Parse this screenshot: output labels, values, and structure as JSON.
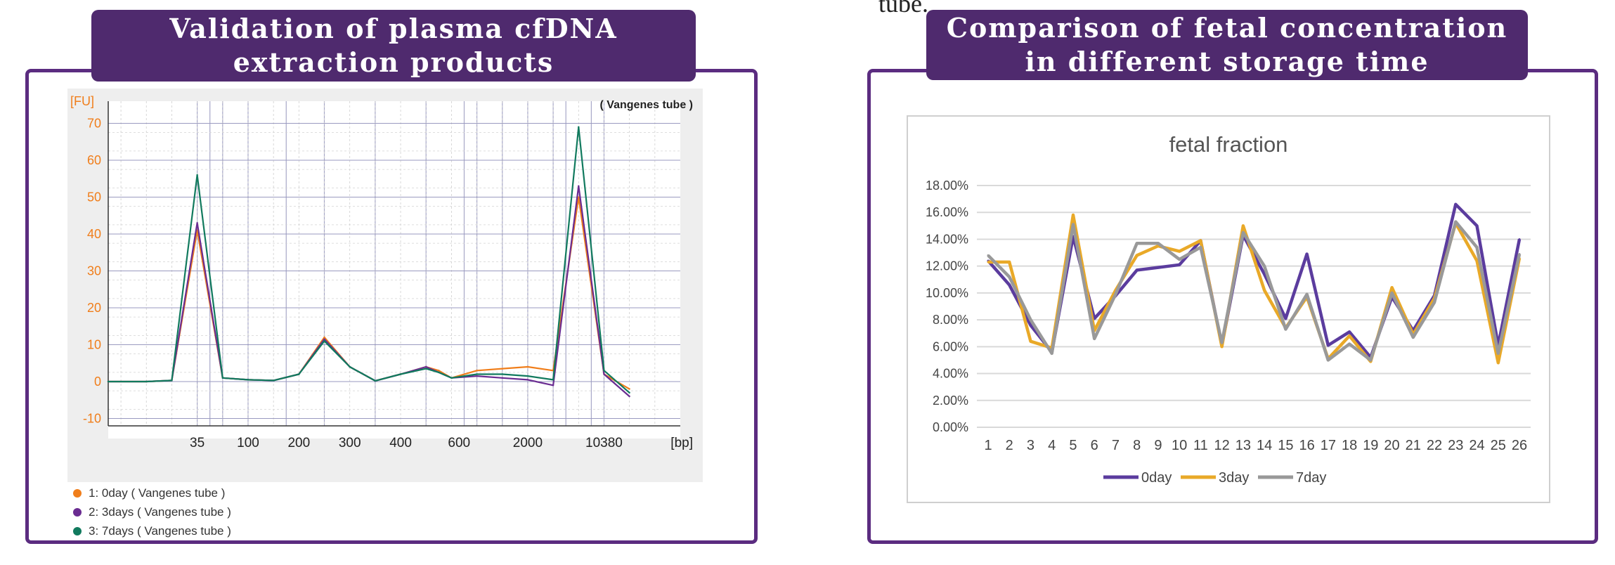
{
  "stray_text": "tube.",
  "left_panel": {
    "title_line1": "Validation of plasma cfDNA",
    "title_line2": "extraction products",
    "legend": [
      {
        "label": "1: 0day ( Vangenes tube )",
        "color": "#f07e1b"
      },
      {
        "label": "2: 3days ( Vangenes tube )",
        "color": "#6a2c91"
      },
      {
        "label": "3: 7days ( Vangenes tube )",
        "color": "#117a5e"
      }
    ]
  },
  "right_panel": {
    "title_line1": "Comparison of fetal concentration",
    "title_line2": "in different storage time"
  },
  "chart_data": [
    {
      "type": "line",
      "title": "",
      "annotation": "( Vangenes tube )",
      "ylabel": "[FU]",
      "xlabel": "[bp]",
      "ylim": [
        -12,
        76
      ],
      "yticks": [
        -10,
        0,
        10,
        20,
        30,
        40,
        50,
        60,
        70
      ],
      "ytick_labels": [
        "-10",
        "0",
        "10",
        "20",
        "30",
        "40",
        "50",
        "60",
        "70"
      ],
      "x_tick_labels": [
        "35",
        "100",
        "200",
        "300",
        "400",
        "600",
        "2000",
        "10380"
      ],
      "x_positions": [
        0,
        1.5,
        2.5,
        3.5,
        4.5,
        5.5,
        6.5,
        7.5,
        8.5,
        9.5,
        10.5,
        11.5,
        12.5,
        13,
        13.5,
        14.5,
        15.5,
        16.5,
        17.5,
        18.5,
        19.5,
        20.5
      ],
      "series": [
        {
          "name": "1: 0day ( Vangenes tube )",
          "color": "#f07e1b",
          "values": [
            0,
            0,
            0.3,
            41,
            1,
            0.5,
            0.3,
            2,
            12,
            4,
            0.2,
            2,
            4,
            3,
            1,
            3,
            3.5,
            4,
            3,
            50,
            2,
            -2
          ]
        },
        {
          "name": "2: 3days ( Vangenes tube )",
          "color": "#6a2c91",
          "values": [
            0,
            0,
            0.3,
            43,
            1,
            0.5,
            0.3,
            2,
            11.5,
            4,
            0.2,
            2,
            4,
            2.5,
            1,
            1.5,
            1,
            0.5,
            -1,
            53,
            2,
            -4
          ]
        },
        {
          "name": "3: 7days ( Vangenes tube )",
          "color": "#117a5e",
          "values": [
            0,
            0,
            0.3,
            56,
            1,
            0.5,
            0.3,
            2,
            11,
            4,
            0.2,
            2,
            3.5,
            2.5,
            1,
            2,
            2,
            1.5,
            0.5,
            69,
            3,
            -3
          ]
        }
      ]
    },
    {
      "type": "line",
      "title": "fetal fraction",
      "xlabel": "",
      "ylabel": "",
      "ylim": [
        0,
        18
      ],
      "ytick_labels": [
        "0.00%",
        "2.00%",
        "4.00%",
        "6.00%",
        "8.00%",
        "10.00%",
        "12.00%",
        "14.00%",
        "16.00%",
        "18.00%"
      ],
      "categories": [
        "1",
        "2",
        "3",
        "4",
        "5",
        "6",
        "7",
        "8",
        "9",
        "10",
        "11",
        "12",
        "13",
        "14",
        "15",
        "16",
        "17",
        "18",
        "19",
        "20",
        "21",
        "22",
        "23",
        "24",
        "25",
        "26"
      ],
      "series": [
        {
          "name": "0day",
          "color": "#5b3c9e",
          "values": [
            12.4,
            10.6,
            7.6,
            5.6,
            14.2,
            8.1,
            9.8,
            11.7,
            11.9,
            12.1,
            13.9,
            6.1,
            14.3,
            11.4,
            8.1,
            12.9,
            6.1,
            7.1,
            5.2,
            9.7,
            7.2,
            9.8,
            16.6,
            15.0,
            6.1,
            14.0
          ]
        },
        {
          "name": "3day",
          "color": "#e9a928",
          "values": [
            12.3,
            12.3,
            6.4,
            5.9,
            15.8,
            7.2,
            10.2,
            12.8,
            13.5,
            13.1,
            13.9,
            6.0,
            15.0,
            10.2,
            7.4,
            9.7,
            5.1,
            6.8,
            4.9,
            10.4,
            6.9,
            9.6,
            15.2,
            12.4,
            4.8,
            12.6
          ]
        },
        {
          "name": "7day",
          "color": "#999999",
          "values": [
            12.8,
            11.2,
            8.0,
            5.5,
            15.1,
            6.6,
            9.9,
            13.7,
            13.7,
            12.5,
            13.4,
            6.3,
            14.5,
            12.0,
            7.3,
            9.9,
            5.0,
            6.2,
            5.0,
            10.0,
            6.7,
            9.3,
            15.3,
            13.4,
            5.5,
            12.9
          ]
        }
      ]
    }
  ]
}
